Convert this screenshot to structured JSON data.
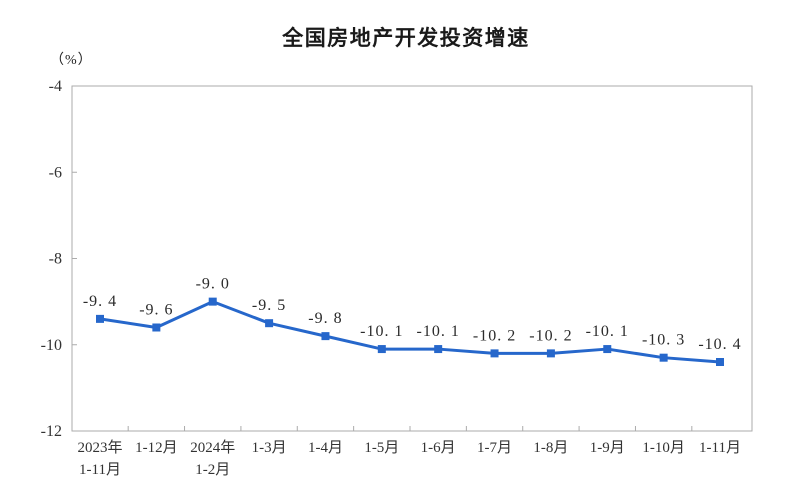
{
  "chart_data": {
    "type": "line",
    "title": "全国房地产开发投资增速",
    "unit_label": "（%）",
    "legend": false,
    "grid": false,
    "categories": [
      [
        "2023年",
        "1-11月"
      ],
      [
        "1-12月"
      ],
      [
        "2024年",
        "1-2月"
      ],
      [
        "1-3月"
      ],
      [
        "1-4月"
      ],
      [
        "1-5月"
      ],
      [
        "1-6月"
      ],
      [
        "1-7月"
      ],
      [
        "1-8月"
      ],
      [
        "1-9月"
      ],
      [
        "1-10月"
      ],
      [
        "1-11月"
      ]
    ],
    "series": [
      {
        "name": "全国房地产开发投资增速",
        "color": "#2667CB",
        "marker": "square",
        "values": [
          -9.4,
          -9.6,
          -9.0,
          -9.5,
          -9.8,
          -10.1,
          -10.1,
          -10.2,
          -10.2,
          -10.1,
          -10.3,
          -10.4
        ],
        "point_labels": [
          "-9. 4",
          "-9. 6",
          "-9. 0",
          "-9. 5",
          "-9. 8",
          "-10. 1",
          "-10. 1",
          "-10. 2",
          "-10. 2",
          "-10. 1",
          "-10. 3",
          "-10. 4"
        ]
      }
    ],
    "y_axis": {
      "min": -12,
      "max": -4,
      "ticks": [
        -4,
        -6,
        -8,
        -10,
        -12
      ],
      "tick_labels": [
        "-4",
        "-6",
        "-8",
        "-10",
        "-12"
      ]
    },
    "colors": {
      "axis": "#ababab",
      "text": "#333333",
      "point_label": "#2b2b2b"
    }
  }
}
